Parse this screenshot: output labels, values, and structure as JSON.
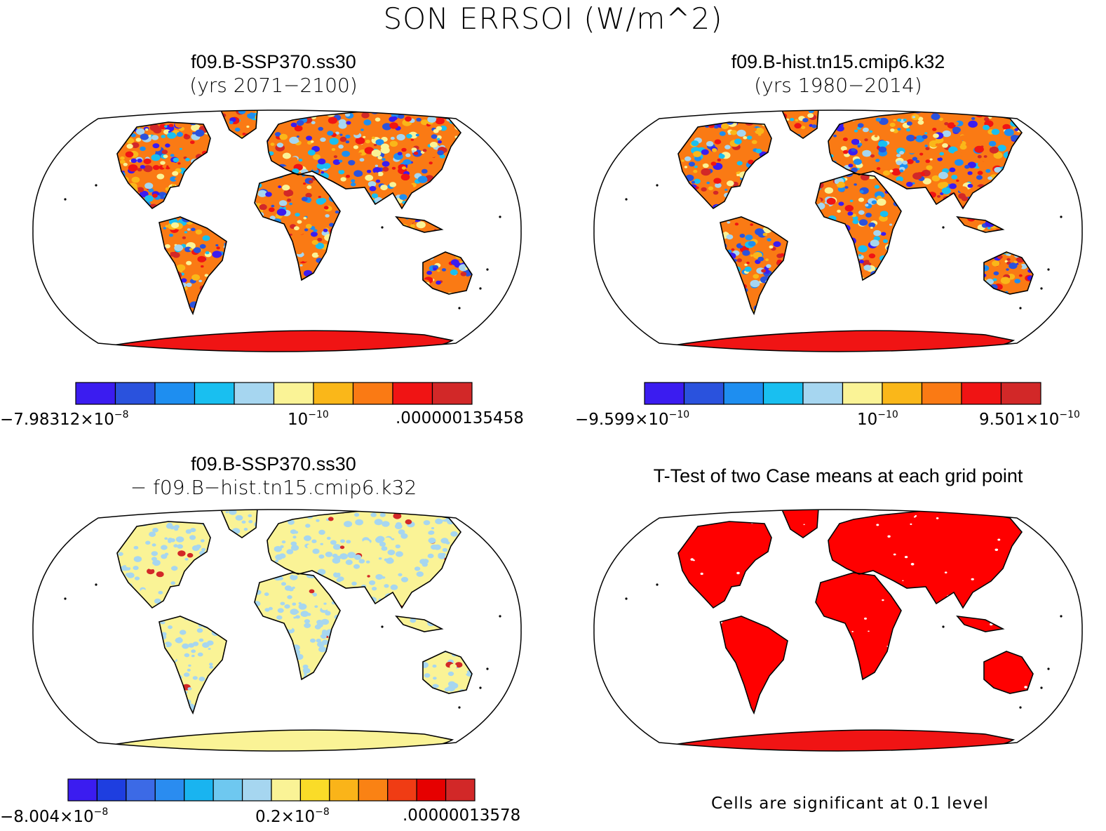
{
  "title": "SON ERRSOI (W/m^2)",
  "panels": [
    {
      "id": "case1",
      "title_line1": "f09.B-SSP370.ss30",
      "title_line2": "(yrs 2071−2100)",
      "fill": "mixed",
      "colorbar": {
        "colors": [
          "#3b1cf0",
          "#2a52dd",
          "#1e8ef0",
          "#19bff0",
          "#a6d6f0",
          "#faf396",
          "#fab719",
          "#fa7a14",
          "#f01414",
          "#d22828"
        ],
        "labels": [
          {
            "mantissa": "−7.98312×10",
            "exponent": "−8"
          },
          {
            "mantissa": "10",
            "exponent": "−10"
          },
          {
            "mantissa": ".000000135458",
            "exponent": ""
          }
        ]
      }
    },
    {
      "id": "case2",
      "title_line1": "f09.B-hist.tn15.cmip6.k32",
      "title_line2": "(yrs 1980−2014)",
      "fill": "mixed",
      "colorbar": {
        "colors": [
          "#3b1cf0",
          "#2a52dd",
          "#1e8ef0",
          "#19bff0",
          "#a6d6f0",
          "#faf396",
          "#fab719",
          "#fa7a14",
          "#f01414",
          "#d22828"
        ],
        "labels": [
          {
            "mantissa": "−9.599×10",
            "exponent": "−10"
          },
          {
            "mantissa": "10",
            "exponent": "−10"
          },
          {
            "mantissa": "9.501×10",
            "exponent": "−10"
          }
        ]
      }
    },
    {
      "id": "difference",
      "title_line1": "f09.B-SSP370.ss30",
      "title_line2": "− f09.B−hist.tn15.cmip6.k32",
      "fill": "diff",
      "colorbar": {
        "colors": [
          "#3b1cf0",
          "#1e3ee0",
          "#3c6ae6",
          "#2a8cf0",
          "#19b4f0",
          "#6ec8f0",
          "#a6d6f0",
          "#faf396",
          "#fadc28",
          "#fab419",
          "#fa8214",
          "#f03c14",
          "#e60000",
          "#d22828"
        ],
        "labels": [
          {
            "mantissa": "−8.004×10",
            "exponent": "−8"
          },
          {
            "mantissa": "0.2×10",
            "exponent": "−8"
          },
          {
            "mantissa": ".00000013578",
            "exponent": ""
          }
        ]
      }
    },
    {
      "id": "ttest",
      "title_line1": "T-Test of two Case means at each grid point",
      "title_line2": "",
      "fill": "ttest",
      "footer": "Cells are significant at 0.1 level"
    }
  ],
  "colors": {
    "significant": "#ff0000",
    "antarctica": "#f01414",
    "diff_land": "#faf396",
    "diff_alt": "#a6d6f0",
    "diff_hot": "#d22828"
  }
}
